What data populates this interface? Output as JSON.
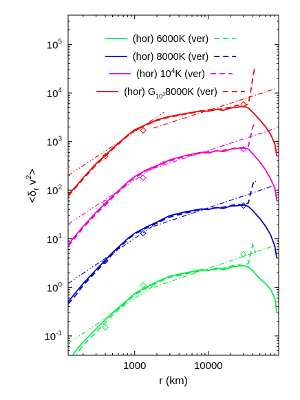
{
  "chart_data": {
    "type": "line",
    "xlabel": "r (km)",
    "ylabel": "<δ_r v^2>",
    "x_scale": "log",
    "y_scale": "log",
    "xlim": [
      125,
      90000
    ],
    "ylim": [
      0.04,
      400000
    ],
    "x_ticks": [
      {
        "value": 1000,
        "label": "1000"
      },
      {
        "value": 10000,
        "label": "10000"
      }
    ],
    "y_ticks": [
      {
        "value": 0.1,
        "base": "10",
        "exp": "-1"
      },
      {
        "value": 1,
        "base": "10",
        "exp": "0"
      },
      {
        "value": 10,
        "base": "10",
        "exp": "1"
      },
      {
        "value": 100,
        "base": "10",
        "exp": "2"
      },
      {
        "value": 1000,
        "base": "10",
        "exp": "3"
      },
      {
        "value": 10000,
        "base": "10",
        "exp": "4"
      },
      {
        "value": 100000,
        "base": "10",
        "exp": "5"
      }
    ],
    "legend_position": "top-center",
    "legend": [
      {
        "text": "(hor) 6000K (ver)",
        "color": "#00ee44"
      },
      {
        "text": "(hor) 8000K (ver)",
        "color": "#0000cc"
      },
      {
        "text": "(hor) 10^4K (ver)",
        "color": "#ee00cc"
      },
      {
        "text": "(hor) G_10^3 8000K (ver)",
        "color": "#ee0000"
      }
    ],
    "series": [
      {
        "color": "#00ee44",
        "hor": [
          [
            125,
            0.03
          ],
          [
            160,
            0.05
          ],
          [
            200,
            0.075
          ],
          [
            300,
            0.14
          ],
          [
            500,
            0.3
          ],
          [
            800,
            0.55
          ],
          [
            1000,
            0.75
          ],
          [
            1500,
            1.05
          ],
          [
            2000,
            1.3
          ],
          [
            3000,
            1.7
          ],
          [
            5000,
            2.0
          ],
          [
            8000,
            2.3
          ],
          [
            10000,
            2.2
          ],
          [
            13000,
            2.5
          ],
          [
            16000,
            2.3
          ],
          [
            20000,
            2.6
          ],
          [
            25000,
            2.7
          ],
          [
            30000,
            2.8
          ],
          [
            35000,
            2.6
          ],
          [
            40000,
            2.2
          ],
          [
            50000,
            1.5
          ],
          [
            60000,
            1.2
          ],
          [
            70000,
            0.9
          ],
          [
            80000,
            0.6
          ],
          [
            85000,
            0.3
          ]
        ],
        "ver": [
          [
            125,
            0.025
          ],
          [
            160,
            0.04
          ],
          [
            200,
            0.065
          ],
          [
            300,
            0.12
          ],
          [
            500,
            0.27
          ],
          [
            800,
            0.52
          ],
          [
            1000,
            0.7
          ],
          [
            1500,
            1.0
          ],
          [
            2000,
            1.25
          ],
          [
            3000,
            1.6
          ],
          [
            5000,
            1.9
          ],
          [
            8000,
            2.2
          ],
          [
            10000,
            2.3
          ],
          [
            15000,
            2.4
          ],
          [
            20000,
            2.7
          ],
          [
            25000,
            2.9
          ],
          [
            30000,
            2.8
          ],
          [
            35000,
            3.1
          ],
          [
            38000,
            5.5
          ],
          [
            40000,
            7.5
          ],
          [
            42000,
            6.0
          ],
          [
            44000,
            5.0
          ]
        ],
        "fit_small": [
          [
            125,
            0.07
          ],
          [
            2500,
            1.5
          ]
        ],
        "fit_large": [
          [
            1800,
            1.0
          ],
          [
            85000,
            7.5
          ]
        ],
        "markers": [
          [
            400,
            0.15
          ],
          [
            1300,
            1.1
          ],
          [
            30000,
            4.8
          ]
        ]
      },
      {
        "color": "#0000cc",
        "hor": [
          [
            125,
            0.5
          ],
          [
            160,
            0.8
          ],
          [
            200,
            1.2
          ],
          [
            300,
            2.3
          ],
          [
            500,
            5.2
          ],
          [
            800,
            10
          ],
          [
            1000,
            13
          ],
          [
            1500,
            18
          ],
          [
            2000,
            22
          ],
          [
            3000,
            30
          ],
          [
            5000,
            36
          ],
          [
            8000,
            41
          ],
          [
            10000,
            40
          ],
          [
            13000,
            44
          ],
          [
            16000,
            42
          ],
          [
            20000,
            47
          ],
          [
            25000,
            48
          ],
          [
            30000,
            50
          ],
          [
            35000,
            46
          ],
          [
            40000,
            38
          ],
          [
            50000,
            26
          ],
          [
            60000,
            18
          ],
          [
            70000,
            12
          ],
          [
            80000,
            7
          ],
          [
            85000,
            4
          ]
        ],
        "ver": [
          [
            125,
            0.45
          ],
          [
            160,
            0.7
          ],
          [
            200,
            1.1
          ],
          [
            300,
            2.1
          ],
          [
            500,
            4.8
          ],
          [
            800,
            9.5
          ],
          [
            1000,
            12.5
          ],
          [
            1500,
            17
          ],
          [
            2000,
            21
          ],
          [
            3000,
            28
          ],
          [
            5000,
            34
          ],
          [
            8000,
            40
          ],
          [
            10000,
            42
          ],
          [
            15000,
            44
          ],
          [
            20000,
            48
          ],
          [
            25000,
            52
          ],
          [
            30000,
            48
          ],
          [
            35000,
            55
          ],
          [
            38000,
            95
          ],
          [
            40000,
            130
          ],
          [
            42000,
            160
          ],
          [
            44000,
            150
          ]
        ],
        "fit_small": [
          [
            125,
            1.2
          ],
          [
            2500,
            26
          ]
        ],
        "fit_large": [
          [
            1800,
            18
          ],
          [
            85000,
            130
          ]
        ],
        "markers": [
          [
            400,
            3.5
          ],
          [
            1300,
            13
          ],
          [
            30000,
            48
          ]
        ]
      },
      {
        "color": "#ee00cc",
        "hor": [
          [
            125,
            7.5
          ],
          [
            160,
            12
          ],
          [
            200,
            18
          ],
          [
            300,
            35
          ],
          [
            500,
            75
          ],
          [
            800,
            145
          ],
          [
            1000,
            190
          ],
          [
            1500,
            270
          ],
          [
            2000,
            320
          ],
          [
            3000,
            420
          ],
          [
            5000,
            520
          ],
          [
            8000,
            600
          ],
          [
            10000,
            580
          ],
          [
            13000,
            650
          ],
          [
            16000,
            620
          ],
          [
            20000,
            700
          ],
          [
            25000,
            720
          ],
          [
            30000,
            750
          ],
          [
            35000,
            700
          ],
          [
            40000,
            560
          ],
          [
            50000,
            380
          ],
          [
            60000,
            260
          ],
          [
            70000,
            170
          ],
          [
            80000,
            110
          ],
          [
            85000,
            60
          ]
        ],
        "ver": [
          [
            125,
            7
          ],
          [
            160,
            11
          ],
          [
            200,
            17
          ],
          [
            300,
            32
          ],
          [
            500,
            70
          ],
          [
            800,
            138
          ],
          [
            1000,
            180
          ],
          [
            1500,
            260
          ],
          [
            2000,
            310
          ],
          [
            3000,
            400
          ],
          [
            5000,
            500
          ],
          [
            8000,
            580
          ],
          [
            10000,
            620
          ],
          [
            15000,
            650
          ],
          [
            20000,
            700
          ],
          [
            25000,
            760
          ],
          [
            30000,
            720
          ],
          [
            35000,
            800
          ],
          [
            38000,
            1400
          ],
          [
            40000,
            2000
          ],
          [
            42000,
            2300
          ],
          [
            44000,
            2100
          ]
        ],
        "fit_small": [
          [
            125,
            20
          ],
          [
            2500,
            400
          ]
        ],
        "fit_large": [
          [
            1800,
            280
          ],
          [
            85000,
            1900
          ]
        ],
        "markers": [
          [
            400,
            55
          ],
          [
            1300,
            180
          ],
          [
            30000,
            700
          ]
        ]
      },
      {
        "color": "#ee0000",
        "hor": [
          [
            125,
            80
          ],
          [
            160,
            120
          ],
          [
            200,
            180
          ],
          [
            300,
            350
          ],
          [
            500,
            720
          ],
          [
            800,
            1350
          ],
          [
            1000,
            1750
          ],
          [
            1500,
            2300
          ],
          [
            2000,
            2800
          ],
          [
            3000,
            3300
          ],
          [
            5000,
            3800
          ],
          [
            8000,
            4300
          ],
          [
            10000,
            4200
          ],
          [
            13000,
            4600
          ],
          [
            16000,
            4400
          ],
          [
            20000,
            4900
          ],
          [
            25000,
            5100
          ],
          [
            30000,
            5300
          ],
          [
            35000,
            4900
          ],
          [
            40000,
            4000
          ],
          [
            50000,
            2800
          ],
          [
            60000,
            2000
          ],
          [
            70000,
            1400
          ],
          [
            80000,
            900
          ],
          [
            85000,
            500
          ]
        ],
        "ver": [
          [
            125,
            75
          ],
          [
            160,
            115
          ],
          [
            200,
            170
          ],
          [
            300,
            330
          ],
          [
            500,
            690
          ],
          [
            800,
            1300
          ],
          [
            1000,
            1700
          ],
          [
            1500,
            2250
          ],
          [
            2000,
            2700
          ],
          [
            3000,
            3200
          ],
          [
            5000,
            3700
          ],
          [
            8000,
            4200
          ],
          [
            10000,
            4500
          ],
          [
            15000,
            4700
          ],
          [
            20000,
            5100
          ],
          [
            25000,
            5600
          ],
          [
            30000,
            5200
          ],
          [
            35000,
            6000
          ],
          [
            38000,
            12000
          ],
          [
            40000,
            20000
          ],
          [
            42000,
            30000
          ],
          [
            44000,
            27000
          ]
        ],
        "fit_small": [
          [
            125,
            200
          ],
          [
            2500,
            4000
          ]
        ],
        "fit_large": [
          [
            1800,
            1900
          ],
          [
            85000,
            12500
          ]
        ],
        "markers": [
          [
            400,
            500
          ],
          [
            1300,
            1700
          ],
          [
            30000,
            5800
          ]
        ]
      }
    ]
  }
}
